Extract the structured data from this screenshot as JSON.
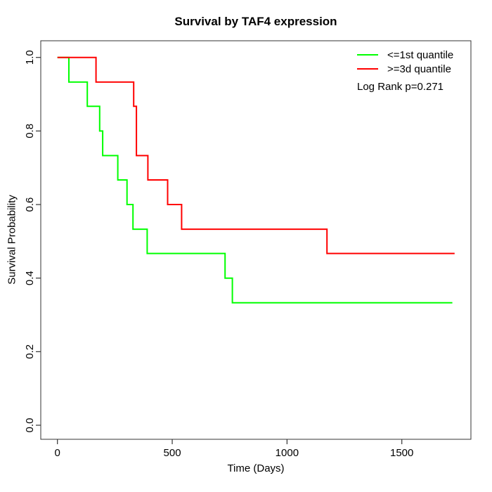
{
  "title": "Survival by TAF4 expression",
  "annotation": {
    "log_rank": "Log Rank p=0.271"
  },
  "legend": {
    "position": "top-right",
    "items": [
      {
        "label": "<=1st quantile",
        "color": "#00ff00"
      },
      {
        "label": ">=3d quantile",
        "color": "#ff0000"
      }
    ]
  },
  "chart_data": {
    "type": "line",
    "subtype": "kaplan-meier-step",
    "title": "Survival by TAF4 expression",
    "xlabel": "Time (Days)",
    "ylabel": "Survival Probability",
    "xlim": [
      0,
      1800
    ],
    "ylim": [
      0.0,
      1.0
    ],
    "grid": false,
    "legend_position": "top-right",
    "x_ticks": [
      0,
      500,
      1000,
      1500
    ],
    "x_tick_labels": [
      "0",
      "500",
      "1000",
      "1500"
    ],
    "y_ticks": [
      0.0,
      0.2,
      0.4,
      0.6,
      0.8,
      1.0
    ],
    "y_tick_labels": [
      "0.0",
      "0.2",
      "0.4",
      "0.6",
      "0.8",
      "1.0"
    ],
    "axis_color": "#333333",
    "series": [
      {
        "name": "<=1st quantile",
        "color": "#00ff00",
        "start": {
          "time": 0,
          "survival": 1.0
        },
        "steps": [
          {
            "time": 50,
            "survival": 0.933
          },
          {
            "time": 130,
            "survival": 0.867
          },
          {
            "time": 184,
            "survival": 0.8
          },
          {
            "time": 197,
            "survival": 0.733
          },
          {
            "time": 263,
            "survival": 0.667
          },
          {
            "time": 303,
            "survival": 0.6
          },
          {
            "time": 329,
            "survival": 0.533
          },
          {
            "time": 391,
            "survival": 0.467
          },
          {
            "time": 730,
            "survival": 0.4
          },
          {
            "time": 762,
            "survival": 0.333
          }
        ],
        "end_time": 1720
      },
      {
        "name": ">=3d quantile",
        "color": "#ff0000",
        "start": {
          "time": 0,
          "survival": 1.0
        },
        "steps": [
          {
            "time": 168,
            "survival": 0.933
          },
          {
            "time": 332,
            "survival": 0.867
          },
          {
            "time": 344,
            "survival": 0.733
          },
          {
            "time": 394,
            "survival": 0.667
          },
          {
            "time": 480,
            "survival": 0.6
          },
          {
            "time": 541,
            "survival": 0.533
          },
          {
            "time": 1174,
            "survival": 0.467
          }
        ],
        "end_time": 1730
      }
    ],
    "annotations": [
      "Log Rank p=0.271"
    ]
  }
}
